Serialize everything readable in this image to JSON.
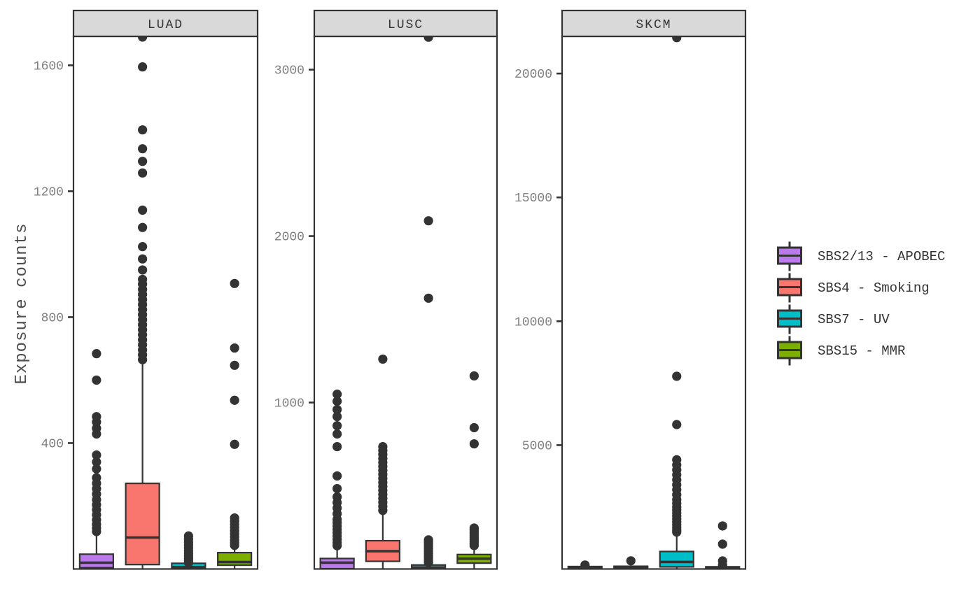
{
  "figure": {
    "ylabel": "Exposure counts",
    "colors": {
      "background": "#FFFFFF",
      "panel_border": "#333333",
      "strip_fill": "#D9D9D9",
      "strip_text": "#333333",
      "tick_label": "#7F7F7F",
      "tick_mark": "#333333",
      "axis_title": "#4E4E4E",
      "outlier": "#333333",
      "box_border": "#333333"
    }
  },
  "legend": {
    "items": [
      {
        "label": "SBS2/13 - APOBEC",
        "color": "#BA7AEC"
      },
      {
        "label": "SBS4 - Smoking",
        "color": "#F8766D"
      },
      {
        "label": "SBS7 - UV",
        "color": "#00BEC8"
      },
      {
        "label": "SBS15 - MMR",
        "color": "#7CAE00"
      }
    ]
  },
  "chart_data": {
    "type": "boxplot",
    "title": "",
    "xlabel": "",
    "ylabel": "Exposure counts",
    "legend_position": "right",
    "grid": false,
    "facets": [
      {
        "name": "LUAD",
        "ylim": [
          0,
          1692
        ],
        "ymax": 1692,
        "yticks": [
          400,
          800,
          1200,
          1600
        ],
        "series": [
          {
            "name": "SBS2/13 - APOBEC",
            "q1": 4,
            "median": 20,
            "q3": 47,
            "whisker_low": 0,
            "whisker_high": 110,
            "outliers": [
              119,
              130,
              142,
              156,
              172,
              188,
              204,
              220,
              238,
              255,
              272,
              290,
              318,
              340,
              362,
              429,
              447,
              467,
              484,
              600,
              684
            ]
          },
          {
            "name": "SBS4 - Smoking",
            "q1": 14,
            "median": 100,
            "q3": 272,
            "whisker_low": 0,
            "whisker_high": 660,
            "outliers": [
              665,
              680,
              696,
              712,
              728,
              744,
              760,
              776,
              792,
              808,
              824,
              840,
              856,
              872,
              888,
              905,
              920,
              950,
              985,
              1024,
              1085,
              1140,
              1258,
              1295,
              1335,
              1395,
              1595,
              1690
            ]
          },
          {
            "name": "SBS7 - UV",
            "q1": 0,
            "median": 6,
            "q3": 18,
            "whisker_low": 0,
            "whisker_high": 26,
            "outliers": [
              20,
              27,
              34,
              42,
              50,
              58,
              67,
              76,
              85,
              95,
              105
            ]
          },
          {
            "name": "SBS15 - MMR",
            "q1": 12,
            "median": 22,
            "q3": 52,
            "whisker_low": 0,
            "whisker_high": 70,
            "outliers": [
              75,
              83,
              92,
              102,
              112,
              122,
              132,
              142,
              152,
              162,
              396,
              536,
              647,
              702,
              907
            ]
          }
        ]
      },
      {
        "name": "LUSC",
        "ylim": [
          0,
          3200
        ],
        "ymax": 3200,
        "yticks": [
          1000,
          2000,
          3000
        ],
        "series": [
          {
            "name": "SBS2/13 - APOBEC",
            "q1": 2,
            "median": 38,
            "q3": 63,
            "whisker_low": 0,
            "whisker_high": 126,
            "outliers": [
              140,
              158,
              178,
              198,
              218,
              238,
              258,
              278,
              298,
              332,
              366,
              399,
              433,
              483,
              559,
              735,
              811,
              861,
              916,
              958,
              1008,
              1050
            ]
          },
          {
            "name": "SBS4 - Smoking",
            "q1": 46,
            "median": 107,
            "q3": 170,
            "whisker_low": 0,
            "whisker_high": 328,
            "outliers": [
              352,
              376,
              400,
              424,
              448,
              472,
              496,
              520,
              544,
              568,
              592,
              616,
              640,
              664,
              688,
              712,
              735,
              1261
            ]
          },
          {
            "name": "SBS7 - UV",
            "q1": 0,
            "median": 8,
            "q3": 24,
            "whisker_low": 0,
            "whisker_high": 34,
            "outliers": [
              40,
              52,
              66,
              80,
              94,
              108,
              122,
              136,
              150,
              164,
              175,
              1627,
              2092,
              3195
            ]
          },
          {
            "name": "SBS15 - MMR",
            "q1": 35,
            "median": 62,
            "q3": 87,
            "whisker_low": 0,
            "whisker_high": 132,
            "outliers": [
              141,
              153,
              165,
              177,
              189,
              201,
              213,
              225,
              237,
              246,
              752,
              849,
              1160
            ]
          }
        ]
      },
      {
        "name": "SKCM",
        "ylim": [
          0,
          21500
        ],
        "ymax": 21500,
        "yticks": [
          5000,
          10000,
          15000,
          20000
        ],
        "series": [
          {
            "name": "SBS2/13 - APOBEC",
            "q1": 0,
            "median": 30,
            "q3": 100,
            "whisker_low": 0,
            "whisker_high": 120,
            "outliers": [
              160
            ]
          },
          {
            "name": "SBS4 - Smoking",
            "q1": 0,
            "median": 35,
            "q3": 110,
            "whisker_low": 0,
            "whisker_high": 150,
            "outliers": [
              330
            ]
          },
          {
            "name": "SBS7 - UV",
            "q1": 85,
            "median": 283,
            "q3": 706,
            "whisker_low": 0,
            "whisker_high": 1412,
            "outliers": [
              1490,
              1580,
              1680,
              1790,
              1900,
              2020,
              2140,
              2260,
              2380,
              2500,
              2650,
              2800,
              3000,
              3200,
              3400,
              3600,
              3800,
              4000,
              4200,
              4407,
              5830,
              7780,
              21450
            ]
          },
          {
            "name": "SBS15 - MMR",
            "q1": 0,
            "median": 25,
            "q3": 90,
            "whisker_low": 0,
            "whisker_high": 170,
            "outliers": [
              160,
              325,
              1003,
              1737
            ]
          }
        ]
      }
    ]
  }
}
